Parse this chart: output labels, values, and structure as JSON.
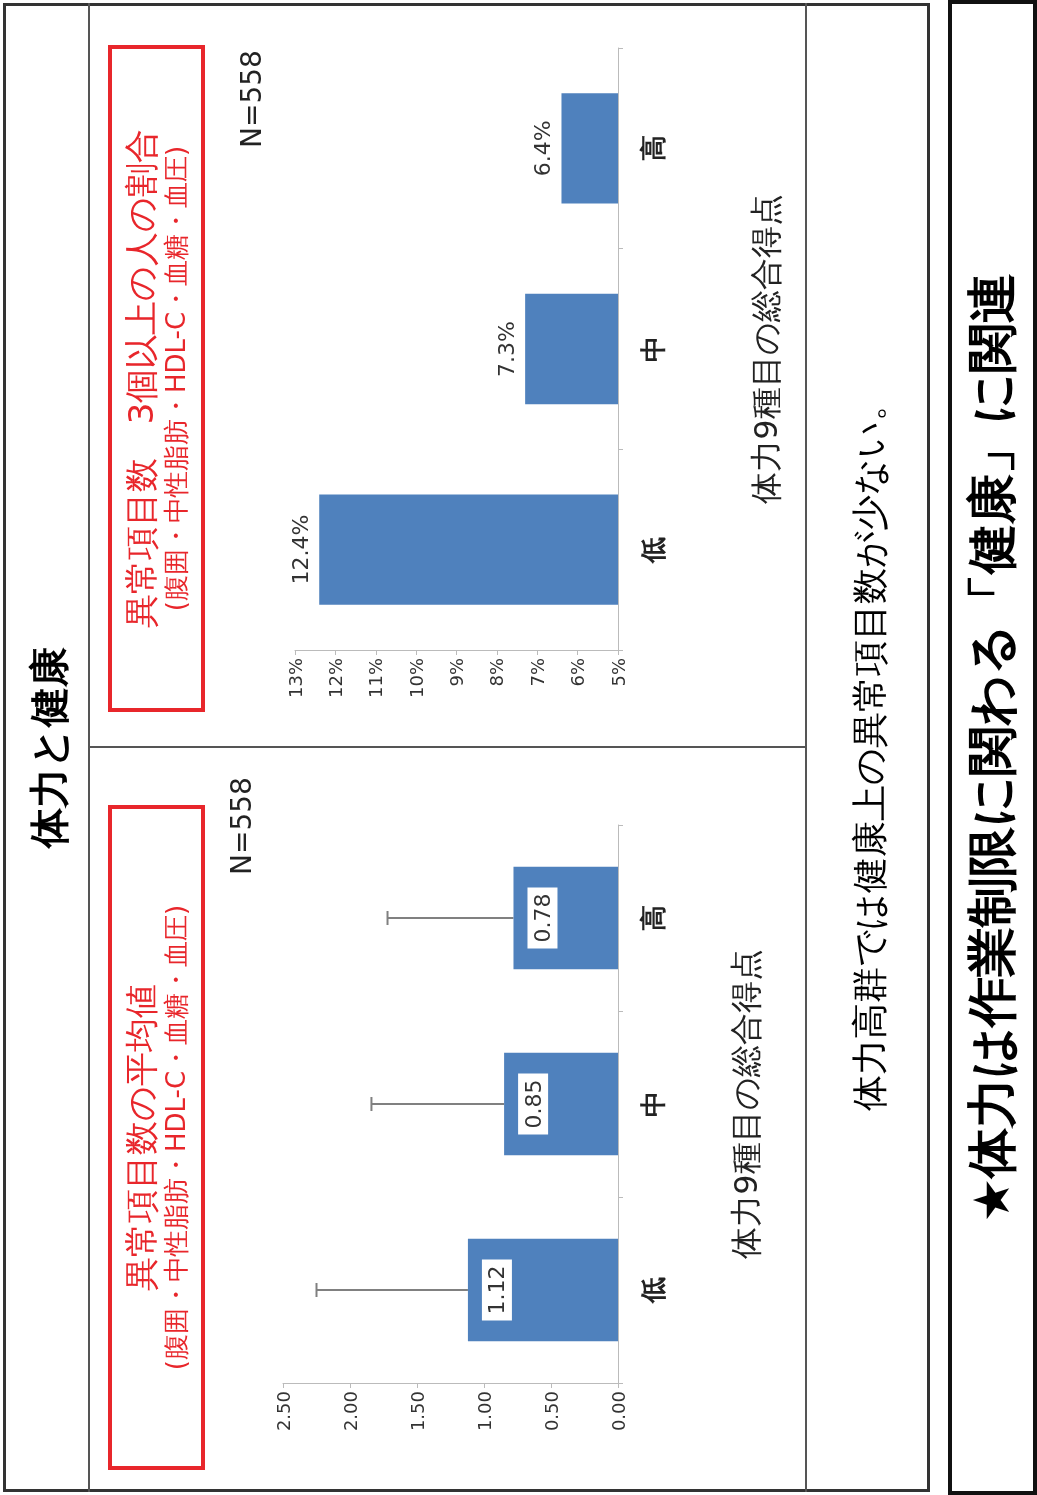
{
  "chart_data": [
    {
      "type": "bar",
      "orientation": "horizontal",
      "title": "異常項目数の平均値",
      "subtitle": "(腹囲・中性脂肪・HDL-C・血糖・血圧)",
      "ylabel": "体力9種目の総合得点",
      "annotations": [
        "N=558"
      ],
      "categories": [
        "高",
        "中",
        "低"
      ],
      "values": [
        0.78,
        0.85,
        1.12
      ],
      "errors": [
        [
          0.78,
          1.72
        ],
        [
          0.85,
          1.84
        ],
        [
          1.12,
          2.25
        ]
      ],
      "color": "#4f81bd",
      "data_labels": true,
      "xlim": [
        2.5,
        0
      ],
      "xticks": [
        {
          "value": 0,
          "label": "0.00"
        },
        {
          "value": 0.5,
          "label": "0.50"
        },
        {
          "value": 1,
          "label": "1.00"
        },
        {
          "value": 1.5,
          "label": "1.50"
        },
        {
          "value": 2,
          "label": "2.00"
        },
        {
          "value": 2.5,
          "label": "2.50"
        }
      ]
    },
    {
      "type": "bar",
      "orientation": "horizontal",
      "title": "異常項目数　3個以上の人の割合",
      "subtitle": "(腹囲・中性脂肪・HDL-C・血糖・血圧)",
      "ylabel": "体力9種目の総合得点",
      "annotations": [
        "N=558"
      ],
      "categories": [
        "高",
        "中",
        "低"
      ],
      "values": [
        6.4,
        7.3,
        12.4
      ],
      "value_labels": [
        "6.4%",
        "7.3%",
        "12.4%"
      ],
      "color": "#4f81bd",
      "xlim": [
        13,
        5
      ],
      "xticks": [
        {
          "value": 5,
          "label": "5%"
        },
        {
          "value": 6,
          "label": "6%"
        },
        {
          "value": 7,
          "label": "7%"
        },
        {
          "value": 8,
          "label": "8%"
        },
        {
          "value": 9,
          "label": "9%"
        },
        {
          "value": 10,
          "label": "10%"
        },
        {
          "value": 11,
          "label": "11%"
        },
        {
          "value": 12,
          "label": "12%"
        },
        {
          "value": 13,
          "label": "13%"
        }
      ]
    },
    {
      "type": "other",
      "title": "体力と健康",
      "annotations": [
        "体力高群では健康上の異常項目数が少ない。",
        "★体力は作業制限に関わる「健康」に関連"
      ]
    }
  ]
}
